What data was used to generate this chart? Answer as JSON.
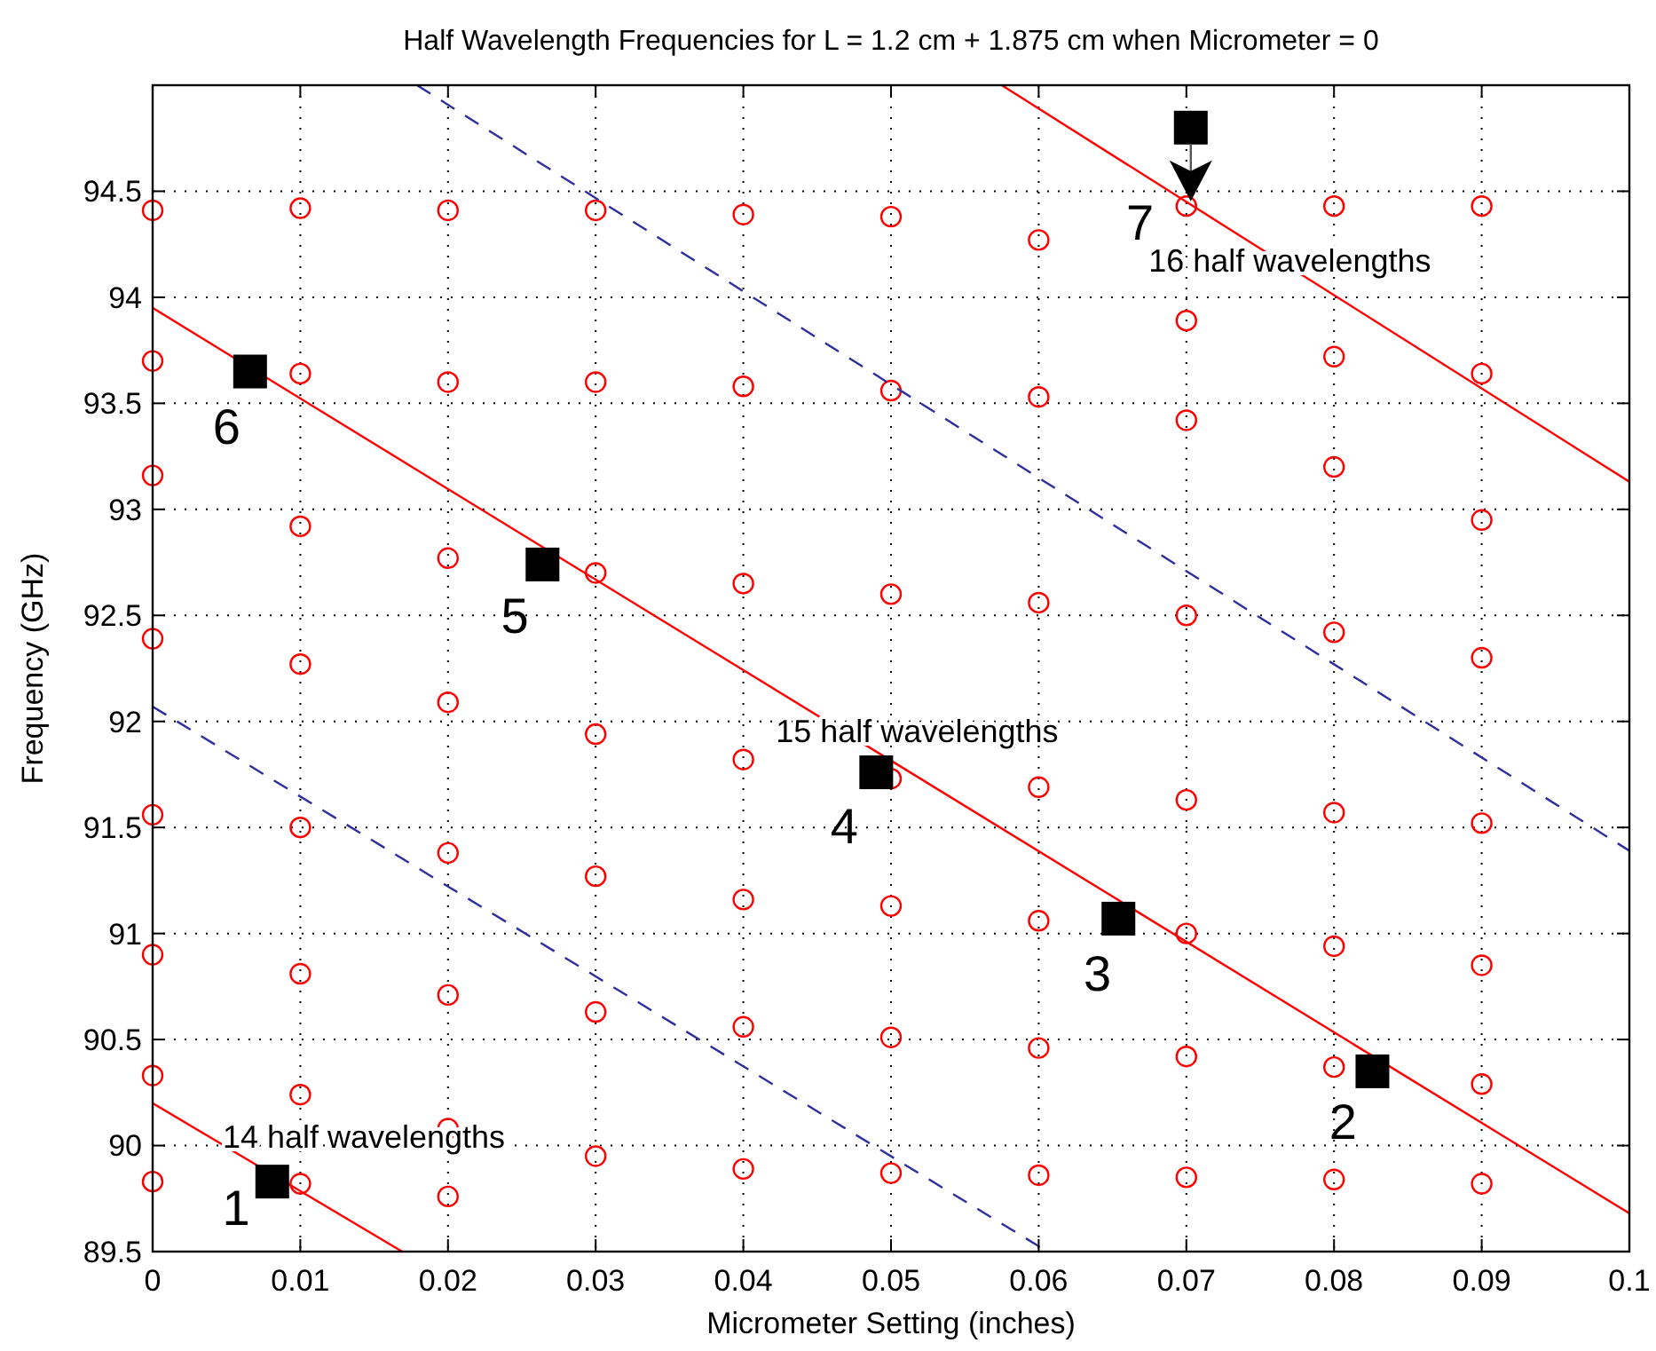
{
  "chart_data": {
    "type": "scatter",
    "title": "Half Wavelength Frequencies for L = 1.2 cm + 1.875 cm when Micrometer = 0",
    "xlabel": "Micrometer Setting (inches)",
    "ylabel": "Frequency (GHz)",
    "xlim": [
      0,
      0.1
    ],
    "xticks": [
      0,
      0.01,
      0.02,
      0.03,
      0.04,
      0.05,
      0.06,
      0.07,
      0.08,
      0.09,
      0.1
    ],
    "ylim": [
      89.5,
      95
    ],
    "yticks": [
      89.5,
      90,
      90.5,
      91,
      91.5,
      92,
      92.5,
      93,
      93.5,
      94,
      94.5
    ],
    "grid": true,
    "series": [
      {
        "marker": "circle",
        "color": "#ff0000",
        "x": [
          0,
          0,
          0,
          0,
          0,
          0,
          0,
          0,
          0.01,
          0.01,
          0.01,
          0.01,
          0.01,
          0.01,
          0.01,
          0.01,
          0.02,
          0.02,
          0.02,
          0.02,
          0.02,
          0.02,
          0.02,
          0.02,
          0.03,
          0.03,
          0.03,
          0.03,
          0.03,
          0.03,
          0.03,
          0.04,
          0.04,
          0.04,
          0.04,
          0.04,
          0.04,
          0.04,
          0.05,
          0.05,
          0.05,
          0.05,
          0.05,
          0.05,
          0.05,
          0.06,
          0.06,
          0.06,
          0.06,
          0.06,
          0.06,
          0.06,
          0.07,
          0.07,
          0.07,
          0.07,
          0.07,
          0.07,
          0.07,
          0.07,
          0.08,
          0.08,
          0.08,
          0.08,
          0.08,
          0.08,
          0.08,
          0.08,
          0.09,
          0.09,
          0.09,
          0.09,
          0.09,
          0.09,
          0.09,
          0.09
        ],
        "values": [
          89.83,
          90.33,
          90.9,
          91.56,
          92.39,
          93.16,
          93.7,
          94.41,
          89.82,
          90.24,
          90.81,
          91.5,
          92.27,
          92.92,
          93.64,
          94.42,
          89.76,
          90.08,
          90.71,
          91.38,
          92.09,
          92.77,
          93.6,
          94.41,
          89.95,
          90.63,
          91.27,
          91.94,
          92.7,
          93.6,
          94.41,
          89.89,
          90.56,
          91.16,
          91.82,
          92.65,
          93.58,
          94.39,
          89.87,
          90.51,
          91.13,
          91.73,
          92.6,
          93.56,
          94.38,
          89.86,
          90.46,
          91.06,
          91.69,
          92.56,
          93.53,
          94.27,
          89.85,
          90.42,
          91,
          91.63,
          92.5,
          93.42,
          93.89,
          94.43,
          89.84,
          90.37,
          90.94,
          91.57,
          92.42,
          93.2,
          93.72,
          94.43,
          89.82,
          90.29,
          90.85,
          91.52,
          92.3,
          92.95,
          93.64,
          94.43
        ]
      },
      {
        "type": "line",
        "marker": "none",
        "line_style": "solid",
        "color": "#ff0000",
        "x": [
          0,
          0.0169
        ],
        "values": [
          90.2,
          89.5
        ]
      },
      {
        "type": "line",
        "marker": "none",
        "line_style": "solid",
        "color": "#ff0000",
        "x": [
          0,
          0.1
        ],
        "values": [
          93.95,
          89.68
        ]
      },
      {
        "type": "line",
        "marker": "none",
        "line_style": "solid",
        "color": "#ff0000",
        "x": [
          0.0575,
          0.1
        ],
        "values": [
          95,
          93.13
        ]
      },
      {
        "type": "line",
        "marker": "none",
        "line_style": "dashed",
        "color": "#2e2e9e",
        "x": [
          0,
          0.0606
        ],
        "values": [
          92.07,
          89.5
        ]
      },
      {
        "type": "line",
        "marker": "none",
        "line_style": "dashed",
        "color": "#2e2e9e",
        "x": [
          0.0179,
          0.1
        ],
        "values": [
          95,
          91.39
        ]
      },
      {
        "marker": "square",
        "color": "#000000",
        "x": [
          0.0081,
          0.0826,
          0.0654,
          0.049,
          0.0264,
          0.0066,
          0.0703
        ],
        "values": [
          89.83,
          90.35,
          91.07,
          91.76,
          92.74,
          93.65,
          94.8
        ]
      }
    ],
    "annotations": [
      "14 half wavelengths",
      "15 half wavelengths",
      "16 half wavelengths",
      "1",
      "2",
      "3",
      "4",
      "5",
      "6",
      "7"
    ]
  }
}
